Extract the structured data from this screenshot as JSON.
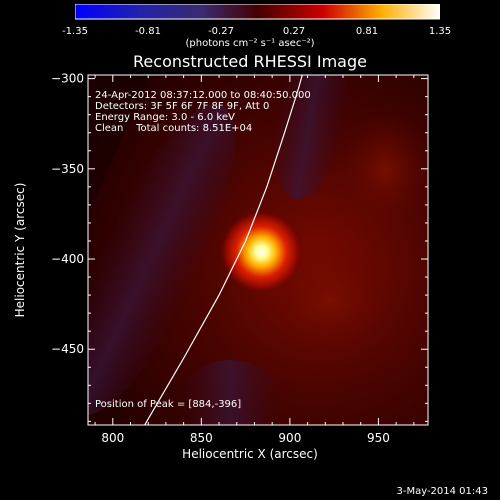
{
  "colorbar": {
    "ticks": [
      "-1.35",
      "-0.81",
      "-0.27",
      "0.27",
      "0.81",
      "1.35"
    ],
    "units_label": "(photons cm⁻² s⁻¹ asec⁻²)",
    "range": [
      -1.35,
      1.35
    ]
  },
  "title": "Reconstructed RHESSI Image",
  "annotations": {
    "time_range": "24-Apr-2012 08:37:12.000 to 08:40:50.000",
    "detectors": "Detectors: 3F 5F 6F 7F 8F 9F, Att 0",
    "energy": "Energy Range: 3.0 - 6.0 keV",
    "clean": "Clean    Total counts: 8.51E+04",
    "peak": "Position of Peak = [884,-396]"
  },
  "timestamp": "3-May-2014 01:43",
  "chart_data": {
    "type": "heatmap",
    "title": "Reconstructed RHESSI Image",
    "xlabel": "Heliocentric X (arcsec)",
    "ylabel": "Heliocentric Y (arcsec)",
    "xlim": [
      786,
      978
    ],
    "ylim": [
      -492,
      -298
    ],
    "xticks": [
      800,
      850,
      900,
      950
    ],
    "yticks": [
      -300,
      -350,
      -400,
      -450
    ],
    "xtick_labels": [
      "800",
      "850",
      "900",
      "950"
    ],
    "ytick_labels": [
      "-300",
      "-350",
      "-400",
      "-450"
    ],
    "peak": {
      "x": 884,
      "y": -396,
      "value": 1.35
    },
    "limb_curve": [
      [
        818,
        -492
      ],
      [
        840,
        -455
      ],
      [
        860,
        -420
      ],
      [
        875,
        -390
      ],
      [
        887,
        -360
      ],
      [
        897,
        -330
      ],
      [
        905,
        -305
      ],
      [
        907,
        -298
      ]
    ],
    "colormap": "blue-purple-red-yellow-white"
  }
}
